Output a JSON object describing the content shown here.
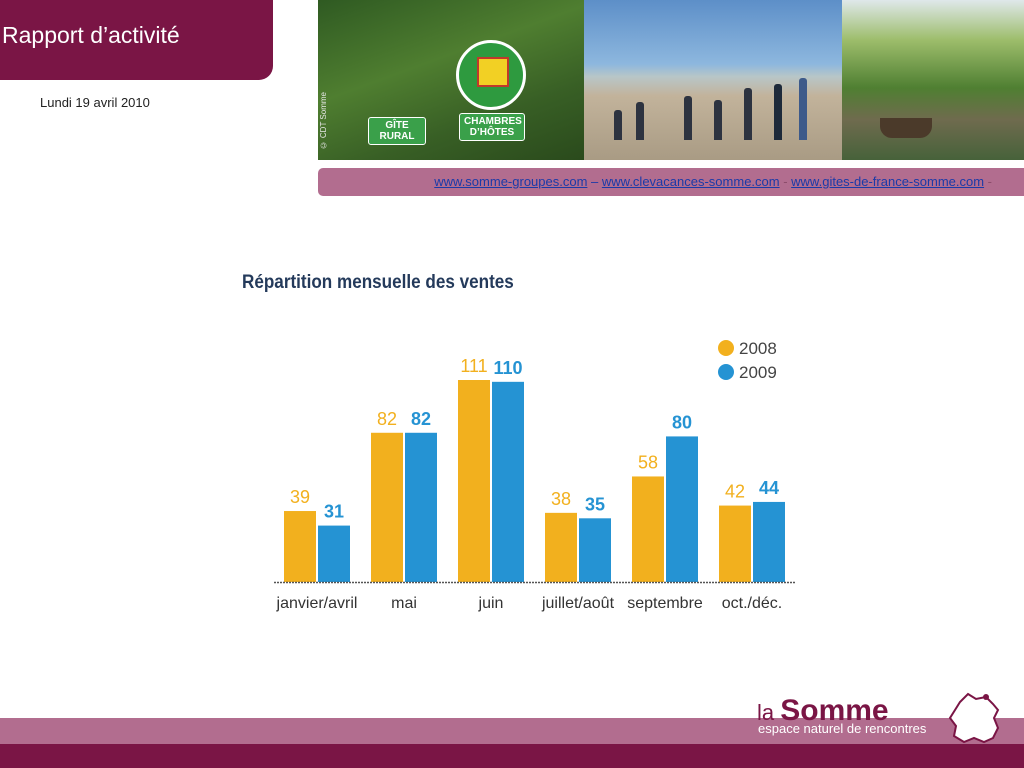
{
  "header": {
    "title": "Rapport d’activité",
    "date": "Lundi 19 avril 2010"
  },
  "photos": {
    "credit": "© CDT Somme",
    "sign_label_1": "GÎTE RURAL",
    "sign_label_2": "CHAMBRES D’HÔTES",
    "sign_ring": "GÎTES DE FRANCE"
  },
  "links": {
    "link1": "www.somme-groupes.com",
    "sep1": " – ",
    "link2": "www.clevacances-somme.com",
    "sep2": " - ",
    "link3": "www.gites-de-france-somme.com",
    "sep3": " -"
  },
  "colors": {
    "brand": "#7a1545",
    "band": "#b26d8f",
    "series_2008": "#f2b01e",
    "series_2009": "#2593d3",
    "title": "#243a5b"
  },
  "chart_data": {
    "type": "bar",
    "title": "Répartition mensuelle des ventes",
    "categories": [
      "janvier/avril",
      "mai",
      "juin",
      "juillet/août",
      "septembre",
      "oct./déc."
    ],
    "series": [
      {
        "name": "2008",
        "values": [
          39,
          82,
          111,
          38,
          58,
          42
        ]
      },
      {
        "name": "2009",
        "values": [
          31,
          82,
          110,
          35,
          80,
          44
        ]
      }
    ],
    "ylim": [
      0,
      111
    ],
    "grid": false,
    "legend_position": "top-right",
    "xlabel": "",
    "ylabel": ""
  },
  "footer": {
    "logo_prefix": "la",
    "logo_name": "Somme",
    "tagline": "espace naturel de rencontres"
  }
}
